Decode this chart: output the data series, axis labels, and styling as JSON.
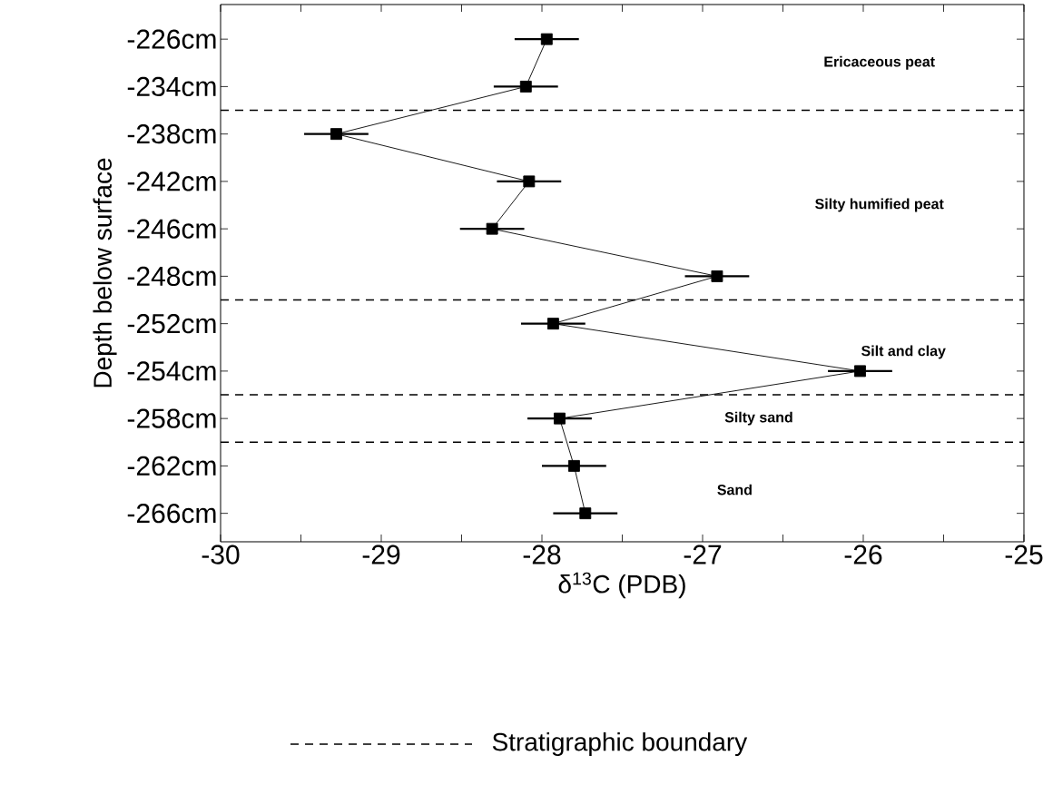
{
  "chart_data": {
    "type": "line",
    "orientation": "horizontal",
    "xlabel": "δ$^{13}$C (PDB)",
    "ylabel": "Depth below surface",
    "categories": [
      "-226cm",
      "-234cm",
      "-238cm",
      "-242cm",
      "-246cm",
      "-248cm",
      "-252cm",
      "-254cm",
      "-258cm",
      "-262cm",
      "-266cm"
    ],
    "values": [
      -27.97,
      -28.1,
      -29.28,
      -28.08,
      -28.31,
      -26.91,
      -27.93,
      -26.02,
      -27.89,
      -27.8,
      -27.73
    ],
    "errors": [
      0.2,
      0.2,
      0.2,
      0.2,
      0.2,
      0.2,
      0.2,
      0.2,
      0.2,
      0.2,
      0.2
    ],
    "color": "#000000",
    "marker": "square",
    "line_style": "solid",
    "xlim": [
      -30,
      -25
    ],
    "xticks": [
      -30,
      {
        "value": -29.5,
        "label": null
      },
      -29,
      {
        "value": -28.5,
        "label": null
      },
      -28,
      {
        "value": -27.5,
        "label": null
      },
      -27,
      {
        "value": -26.5,
        "label": null
      },
      -26,
      {
        "value": -25.5,
        "label": null
      },
      -25
    ],
    "annotations": [
      "Ericaceous peat",
      "Silty humified peat",
      "Silt and clay",
      "Silty sand",
      "Sand",
      "Stratigraphic boundary"
    ],
    "grid": false
  }
}
